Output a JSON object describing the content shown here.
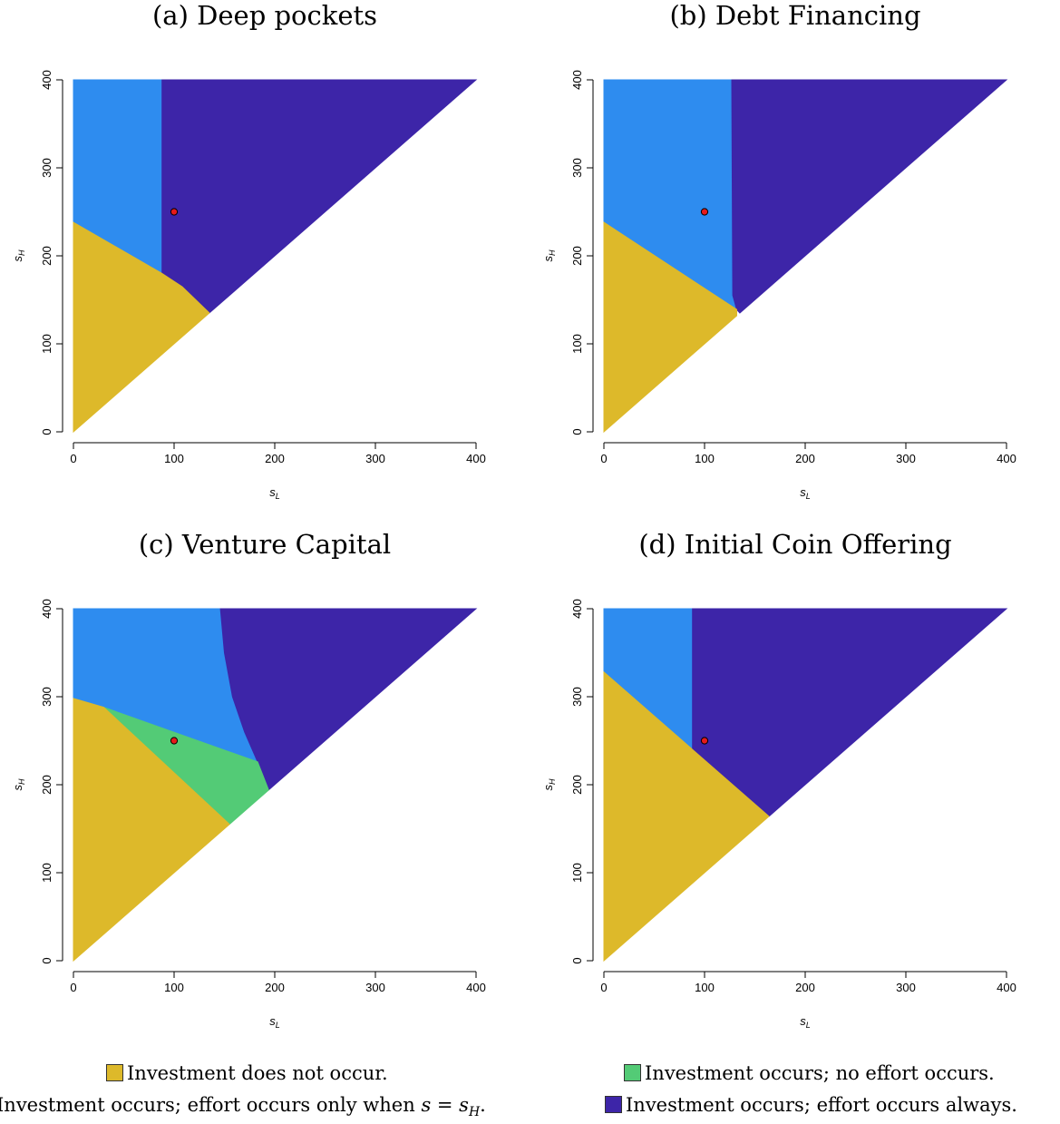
{
  "colors": {
    "no_investment": "#DDB92A",
    "effort_sH_only": "#2E8CEF",
    "no_effort": "#53CB76",
    "effort_always": "#3D25A8",
    "marker": "#E61A1A"
  },
  "legend": {
    "no_investment": "Investment does not occur.",
    "no_effort": "Investment occurs; no effort occurs.",
    "effort_sH_only_prefix": "Investment occurs; effort occurs only when",
    "effort_sH_only_math": "s = s",
    "effort_sH_only_sub": "H",
    "effort_sH_only_suffix": ".",
    "effort_always": "Investment occurs; effort occurs always."
  },
  "chart_data": [
    {
      "type": "heatmap",
      "title": "(a) Deep pockets",
      "xlabel": "s_L",
      "ylabel": "s_H",
      "xlim": [
        0,
        400
      ],
      "ylim": [
        0,
        400
      ],
      "x_ticks": [
        0,
        100,
        200,
        300,
        400
      ],
      "y_ticks": [
        0,
        100,
        200,
        300,
        400
      ],
      "grid": false,
      "point": {
        "x": 100,
        "y": 250
      },
      "regions": [
        {
          "class": "effort_sH_only",
          "vertices": [
            [
              0,
              400
            ],
            [
              88,
              400
            ],
            [
              88,
              180
            ],
            [
              0,
              238
            ]
          ]
        },
        {
          "class": "effort_always",
          "vertices": [
            [
              88,
              400
            ],
            [
              400,
              400
            ],
            [
              135,
              135
            ],
            [
              108,
              165
            ],
            [
              88,
              180
            ]
          ]
        },
        {
          "class": "no_investment",
          "vertices": [
            [
              0,
              0
            ],
            [
              135,
              135
            ],
            [
              108,
              165
            ],
            [
              88,
              180
            ],
            [
              0,
              238
            ]
          ]
        }
      ]
    },
    {
      "type": "heatmap",
      "title": "(b) Debt Financing",
      "xlabel": "s_L",
      "ylabel": "s_H",
      "xlim": [
        0,
        400
      ],
      "ylim": [
        0,
        400
      ],
      "x_ticks": [
        0,
        100,
        200,
        300,
        400
      ],
      "y_ticks": [
        0,
        100,
        200,
        300,
        400
      ],
      "grid": false,
      "point": {
        "x": 100,
        "y": 250
      },
      "regions": [
        {
          "class": "effort_sH_only",
          "vertices": [
            [
              0,
              400
            ],
            [
              127,
              400
            ],
            [
              128,
              155
            ],
            [
              132,
              139
            ],
            [
              0,
              238
            ]
          ]
        },
        {
          "class": "effort_always",
          "vertices": [
            [
              127,
              400
            ],
            [
              400,
              400
            ],
            [
              135,
              135
            ],
            [
              132,
              139
            ],
            [
              128,
              155
            ]
          ]
        },
        {
          "class": "no_investment",
          "vertices": [
            [
              0,
              0
            ],
            [
              132,
              132
            ],
            [
              132,
              139
            ],
            [
              0,
              238
            ]
          ]
        }
      ]
    },
    {
      "type": "heatmap",
      "title": "(c) Venture Capital",
      "xlabel": "s_L",
      "ylabel": "s_H",
      "xlim": [
        0,
        400
      ],
      "ylim": [
        0,
        400
      ],
      "x_ticks": [
        0,
        100,
        200,
        300,
        400
      ],
      "y_ticks": [
        0,
        100,
        200,
        300,
        400
      ],
      "grid": false,
      "point": {
        "x": 100,
        "y": 250
      },
      "regions": [
        {
          "class": "effort_sH_only",
          "vertices": [
            [
              0,
              400
            ],
            [
              146,
              400
            ],
            [
              150,
              350
            ],
            [
              158,
              300
            ],
            [
              170,
              260
            ],
            [
              183,
              226
            ],
            [
              30,
              288
            ],
            [
              0,
              298
            ]
          ]
        },
        {
          "class": "effort_always",
          "vertices": [
            [
              146,
              400
            ],
            [
              400,
              400
            ],
            [
              194,
              194
            ],
            [
              183,
              226
            ],
            [
              170,
              260
            ],
            [
              158,
              300
            ],
            [
              150,
              350
            ]
          ]
        },
        {
          "class": "no_effort",
          "vertices": [
            [
              30,
              288
            ],
            [
              183,
              226
            ],
            [
              194,
              194
            ],
            [
              155,
              155
            ]
          ]
        },
        {
          "class": "no_investment",
          "vertices": [
            [
              0,
              0
            ],
            [
              155,
              155
            ],
            [
              30,
              288
            ],
            [
              0,
              298
            ]
          ]
        }
      ]
    },
    {
      "type": "heatmap",
      "title": "(d) Initial Coin Offering",
      "xlabel": "s_L",
      "ylabel": "s_H",
      "xlim": [
        0,
        400
      ],
      "ylim": [
        0,
        400
      ],
      "x_ticks": [
        0,
        100,
        200,
        300,
        400
      ],
      "y_ticks": [
        0,
        100,
        200,
        300,
        400
      ],
      "grid": false,
      "point": {
        "x": 100,
        "y": 250
      },
      "regions": [
        {
          "class": "effort_sH_only",
          "vertices": [
            [
              0,
              400
            ],
            [
              88,
              400
            ],
            [
              88,
              240
            ],
            [
              0,
              328
            ]
          ]
        },
        {
          "class": "effort_always",
          "vertices": [
            [
              88,
              400
            ],
            [
              400,
              400
            ],
            [
              164,
              164
            ],
            [
              88,
              240
            ]
          ]
        },
        {
          "class": "no_investment",
          "vertices": [
            [
              0,
              0
            ],
            [
              164,
              164
            ],
            [
              88,
              240
            ],
            [
              0,
              328
            ]
          ]
        }
      ]
    }
  ]
}
